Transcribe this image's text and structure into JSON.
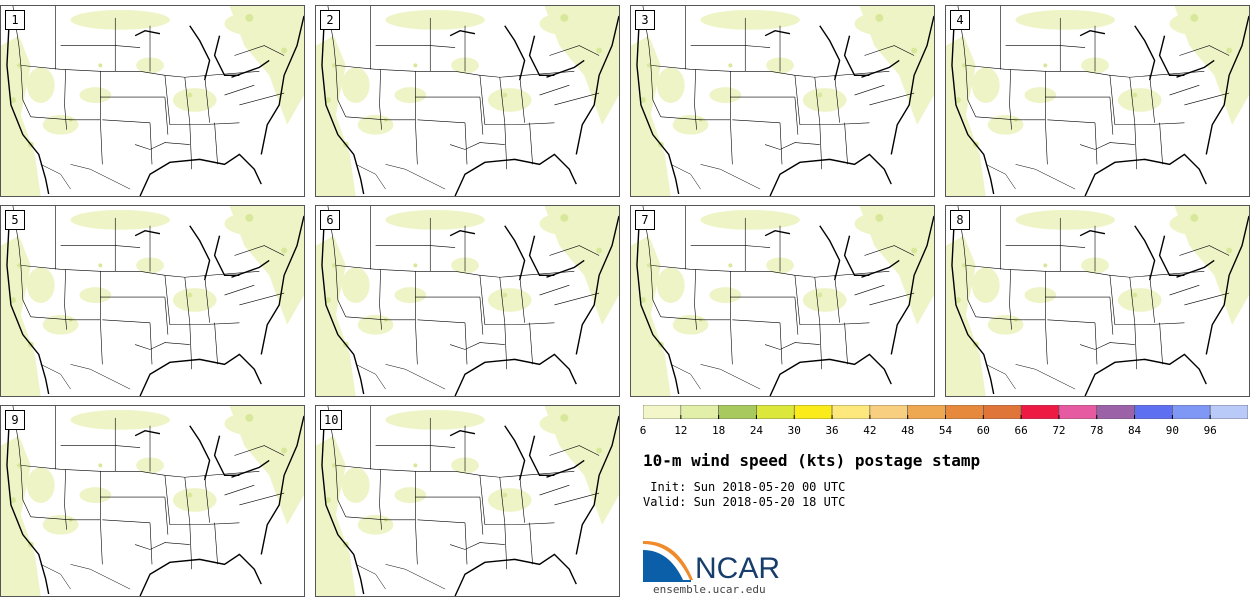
{
  "panels": [
    {
      "label": "1"
    },
    {
      "label": "2"
    },
    {
      "label": "3"
    },
    {
      "label": "4"
    },
    {
      "label": "5"
    },
    {
      "label": "6"
    },
    {
      "label": "7"
    },
    {
      "label": "8"
    },
    {
      "label": "9"
    },
    {
      "label": "10"
    }
  ],
  "legend": {
    "colors": [
      "#f3f6c8",
      "#e2efa9",
      "#a7c95e",
      "#dbe83b",
      "#fbeb1b",
      "#fce87c",
      "#f8cf80",
      "#efa852",
      "#e6893d",
      "#e0753a",
      "#ed1b44",
      "#e55aa0",
      "#9b62a8",
      "#5f6ff2",
      "#7f98f5",
      "#b9c9f8"
    ],
    "ticks": [
      "6",
      "12",
      "18",
      "24",
      "30",
      "36",
      "42",
      "48",
      "54",
      "60",
      "66",
      "72",
      "78",
      "84",
      "90",
      "96"
    ]
  },
  "title": "10-m wind speed (kts) postage stamp",
  "init_line": " Init: Sun 2018-05-20 00 UTC",
  "valid_line": "Valid: Sun 2018-05-20 18 UTC",
  "logo": {
    "text": "NCAR",
    "url": "ensemble.ucar.edu"
  }
}
